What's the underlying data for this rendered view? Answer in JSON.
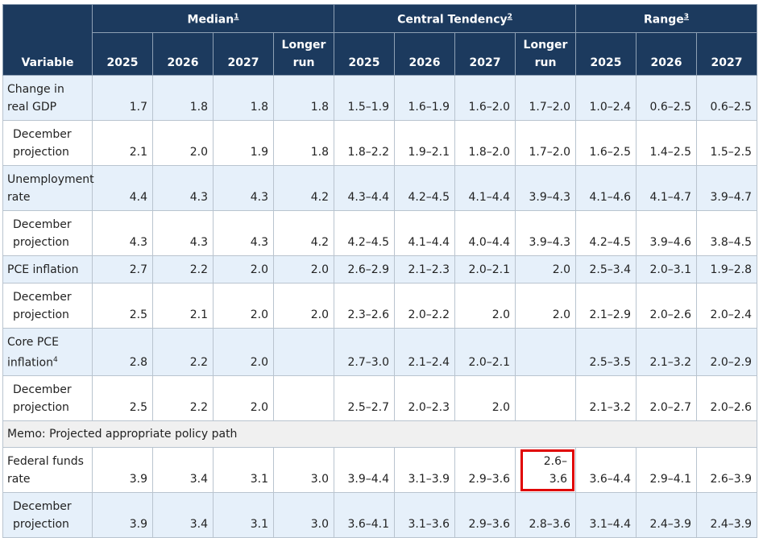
{
  "table": {
    "variable_header": "Variable",
    "groups": [
      {
        "label": "Median",
        "note": "1"
      },
      {
        "label": "Central Tendency",
        "note": "2"
      },
      {
        "label": "Range",
        "note": "3"
      }
    ],
    "columns": [
      "2025",
      "2026",
      "2027",
      "Longer run",
      "2025",
      "2026",
      "2027",
      "Longer run",
      "2025",
      "2026",
      "2027"
    ],
    "rows": [
      {
        "label": "Change in real GDP",
        "values": [
          "1.7",
          "1.8",
          "1.8",
          "1.8",
          "1.5–1.9",
          "1.6–1.9",
          "1.6–2.0",
          "1.7–2.0",
          "1.0–2.4",
          "0.6–2.5",
          "0.6–2.5"
        ]
      },
      {
        "label": "December projection",
        "indent": true,
        "values": [
          "2.1",
          "2.0",
          "1.9",
          "1.8",
          "1.8–2.2",
          "1.9–2.1",
          "1.8–2.0",
          "1.7–2.0",
          "1.6–2.5",
          "1.4–2.5",
          "1.5–2.5"
        ]
      },
      {
        "label": "Unemployment rate",
        "values": [
          "4.4",
          "4.3",
          "4.3",
          "4.2",
          "4.3–4.4",
          "4.2–4.5",
          "4.1–4.4",
          "3.9–4.3",
          "4.1–4.6",
          "4.1–4.7",
          "3.9–4.7"
        ]
      },
      {
        "label": "December projection",
        "indent": true,
        "values": [
          "4.3",
          "4.3",
          "4.3",
          "4.2",
          "4.2–4.5",
          "4.1–4.4",
          "4.0–4.4",
          "3.9–4.3",
          "4.2–4.5",
          "3.9–4.6",
          "3.8–4.5"
        ]
      },
      {
        "label": "PCE inflation",
        "values": [
          "2.7",
          "2.2",
          "2.0",
          "2.0",
          "2.6–2.9",
          "2.1–2.3",
          "2.0–2.1",
          "2.0",
          "2.5–3.4",
          "2.0–3.1",
          "1.9–2.8"
        ]
      },
      {
        "label": "December projection",
        "indent": true,
        "values": [
          "2.5",
          "2.1",
          "2.0",
          "2.0",
          "2.3–2.6",
          "2.0–2.2",
          "2.0",
          "2.0",
          "2.1–2.9",
          "2.0–2.6",
          "2.0–2.4"
        ]
      },
      {
        "label": "Core PCE inflation",
        "note": "4",
        "values": [
          "2.8",
          "2.2",
          "2.0",
          null,
          "2.7–3.0",
          "2.1–2.4",
          "2.0–2.1",
          null,
          "2.5–3.5",
          "2.1–3.2",
          "2.0–2.9"
        ]
      },
      {
        "label": "December projection",
        "indent": true,
        "values": [
          "2.5",
          "2.2",
          "2.0",
          null,
          "2.5–2.7",
          "2.0–2.3",
          "2.0",
          null,
          "2.1–3.2",
          "2.0–2.7",
          "2.0–2.6"
        ]
      },
      {
        "label": "Memo: Projected appropriate policy path",
        "full_width": true
      },
      {
        "label": "Federal funds rate",
        "values": [
          "3.9",
          "3.4",
          "3.1",
          "3.0",
          "3.9–4.4",
          "3.1–3.9",
          "2.9–3.6",
          "2.6–3.6",
          "3.6–4.4",
          "2.9–4.1",
          "2.6–3.9"
        ]
      },
      {
        "label": "December projection",
        "indent": true,
        "values": [
          "3.9",
          "3.4",
          "3.1",
          "3.0",
          "3.6–4.1",
          "3.1–3.6",
          "2.9–3.6",
          "2.8–3.6",
          "3.1–4.4",
          "2.4–3.9",
          "2.4–3.9"
        ]
      }
    ]
  }
}
